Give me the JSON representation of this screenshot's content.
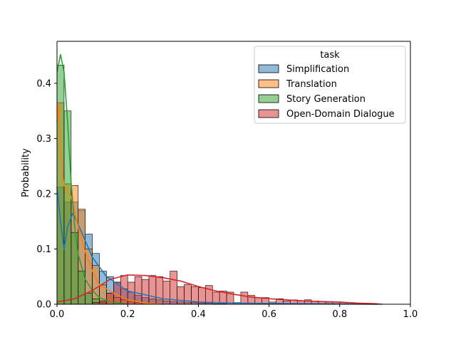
{
  "chart_data": {
    "type": "histogram",
    "xlabel": "",
    "ylabel": "Probability",
    "xlim": [
      0.0,
      1.0
    ],
    "ylim": [
      0.0,
      0.476
    ],
    "x_ticks": [
      "0.0",
      "0.2",
      "0.4",
      "0.6",
      "0.8",
      "1.0"
    ],
    "y_ticks": [
      "0.0",
      "0.1",
      "0.2",
      "0.3",
      "0.4"
    ],
    "x_tick_values": [
      0.0,
      0.2,
      0.4,
      0.6,
      0.8,
      1.0
    ],
    "y_tick_values": [
      0.0,
      0.1,
      0.2,
      0.3,
      0.4
    ],
    "grid": false,
    "legend": {
      "title": "task",
      "placement": "top-right"
    },
    "bin_width": 0.02,
    "series": [
      {
        "name": "Simplification",
        "color": "#1f77b4",
        "bins": [
          [
            0.0,
            0.212
          ],
          [
            0.02,
            0.185
          ],
          [
            0.04,
            0.185
          ],
          [
            0.06,
            0.17
          ],
          [
            0.08,
            0.127
          ],
          [
            0.1,
            0.092
          ],
          [
            0.12,
            0.06
          ],
          [
            0.14,
            0.05
          ],
          [
            0.16,
            0.04
          ],
          [
            0.18,
            0.028
          ],
          [
            0.2,
            0.022
          ],
          [
            0.22,
            0.016
          ],
          [
            0.24,
            0.012
          ],
          [
            0.26,
            0.01
          ],
          [
            0.28,
            0.008
          ],
          [
            0.3,
            0.006
          ],
          [
            0.32,
            0.005
          ],
          [
            0.34,
            0.004
          ],
          [
            0.36,
            0.003
          ],
          [
            0.38,
            0.003
          ],
          [
            0.4,
            0.002
          ],
          [
            0.42,
            0.002
          ],
          [
            0.44,
            0.001
          ],
          [
            0.46,
            0.001
          ]
        ],
        "kde": [
          [
            0.0,
            0.212
          ],
          [
            0.01,
            0.15
          ],
          [
            0.02,
            0.1
          ],
          [
            0.03,
            0.14
          ],
          [
            0.045,
            0.165
          ],
          [
            0.07,
            0.13
          ],
          [
            0.1,
            0.085
          ],
          [
            0.14,
            0.05
          ],
          [
            0.2,
            0.024
          ],
          [
            0.3,
            0.01
          ],
          [
            0.4,
            0.004
          ],
          [
            0.5,
            0.002
          ],
          [
            0.7,
            0.001
          ],
          [
            0.91,
            0.0
          ]
        ]
      },
      {
        "name": "Translation",
        "color": "#ff7f0e",
        "bins": [
          [
            0.0,
            0.365
          ],
          [
            0.02,
            0.218
          ],
          [
            0.04,
            0.215
          ],
          [
            0.06,
            0.172
          ],
          [
            0.08,
            0.1
          ],
          [
            0.1,
            0.07
          ],
          [
            0.12,
            0.035
          ],
          [
            0.14,
            0.02
          ],
          [
            0.16,
            0.012
          ],
          [
            0.18,
            0.008
          ],
          [
            0.2,
            0.005
          ],
          [
            0.22,
            0.003
          ],
          [
            0.24,
            0.002
          ]
        ],
        "kde": [
          [
            0.0,
            0.33
          ],
          [
            0.005,
            0.365
          ],
          [
            0.01,
            0.27
          ],
          [
            0.02,
            0.215
          ],
          [
            0.04,
            0.195
          ],
          [
            0.06,
            0.14
          ],
          [
            0.08,
            0.095
          ],
          [
            0.1,
            0.06
          ],
          [
            0.12,
            0.035
          ],
          [
            0.14,
            0.028
          ],
          [
            0.16,
            0.02
          ],
          [
            0.2,
            0.008
          ],
          [
            0.25,
            0.002
          ],
          [
            0.3,
            0.0
          ]
        ]
      },
      {
        "name": "Story Generation",
        "color": "#2ca02c",
        "bins": [
          [
            0.0,
            0.433
          ],
          [
            0.02,
            0.35
          ],
          [
            0.04,
            0.13
          ],
          [
            0.06,
            0.06
          ],
          [
            0.08,
            0.02
          ],
          [
            0.1,
            0.01
          ],
          [
            0.12,
            0.003
          ]
        ],
        "kde": [
          [
            0.0,
            0.42
          ],
          [
            0.01,
            0.452
          ],
          [
            0.02,
            0.42
          ],
          [
            0.03,
            0.33
          ],
          [
            0.04,
            0.22
          ],
          [
            0.05,
            0.14
          ],
          [
            0.06,
            0.09
          ],
          [
            0.08,
            0.045
          ],
          [
            0.1,
            0.025
          ],
          [
            0.12,
            0.012
          ],
          [
            0.15,
            0.004
          ],
          [
            0.2,
            0.0
          ]
        ]
      },
      {
        "name": "Open-Domain Dialogue",
        "color": "#d62728",
        "bins": [
          [
            0.1,
            0.003
          ],
          [
            0.12,
            0.006
          ],
          [
            0.14,
            0.02
          ],
          [
            0.16,
            0.04
          ],
          [
            0.18,
            0.052
          ],
          [
            0.2,
            0.04
          ],
          [
            0.22,
            0.05
          ],
          [
            0.24,
            0.045
          ],
          [
            0.26,
            0.052
          ],
          [
            0.28,
            0.05
          ],
          [
            0.3,
            0.042
          ],
          [
            0.32,
            0.06
          ],
          [
            0.34,
            0.032
          ],
          [
            0.36,
            0.036
          ],
          [
            0.38,
            0.032
          ],
          [
            0.4,
            0.03
          ],
          [
            0.42,
            0.034
          ],
          [
            0.44,
            0.022
          ],
          [
            0.46,
            0.024
          ],
          [
            0.48,
            0.022
          ],
          [
            0.5,
            0.003
          ],
          [
            0.52,
            0.022
          ],
          [
            0.54,
            0.016
          ],
          [
            0.56,
            0.012
          ],
          [
            0.58,
            0.012
          ],
          [
            0.6,
            0.004
          ],
          [
            0.62,
            0.01
          ],
          [
            0.64,
            0.006
          ],
          [
            0.66,
            0.008
          ],
          [
            0.68,
            0.006
          ],
          [
            0.7,
            0.008
          ],
          [
            0.72,
            0.006
          ],
          [
            0.74,
            0.005
          ],
          [
            0.76,
            0.004
          ],
          [
            0.78,
            0.004
          ],
          [
            0.8,
            0.003
          ],
          [
            0.82,
            0.003
          ],
          [
            0.84,
            0.002
          ],
          [
            0.86,
            0.002
          ]
        ],
        "kde": [
          [
            0.0,
            0.004
          ],
          [
            0.05,
            0.01
          ],
          [
            0.1,
            0.025
          ],
          [
            0.15,
            0.045
          ],
          [
            0.2,
            0.053
          ],
          [
            0.25,
            0.052
          ],
          [
            0.3,
            0.048
          ],
          [
            0.35,
            0.042
          ],
          [
            0.4,
            0.032
          ],
          [
            0.45,
            0.024
          ],
          [
            0.5,
            0.018
          ],
          [
            0.55,
            0.013
          ],
          [
            0.6,
            0.01
          ],
          [
            0.65,
            0.008
          ],
          [
            0.7,
            0.006
          ],
          [
            0.75,
            0.005
          ],
          [
            0.8,
            0.004
          ],
          [
            0.85,
            0.002
          ],
          [
            0.9,
            0.001
          ],
          [
            0.92,
            0.0
          ]
        ]
      }
    ]
  }
}
